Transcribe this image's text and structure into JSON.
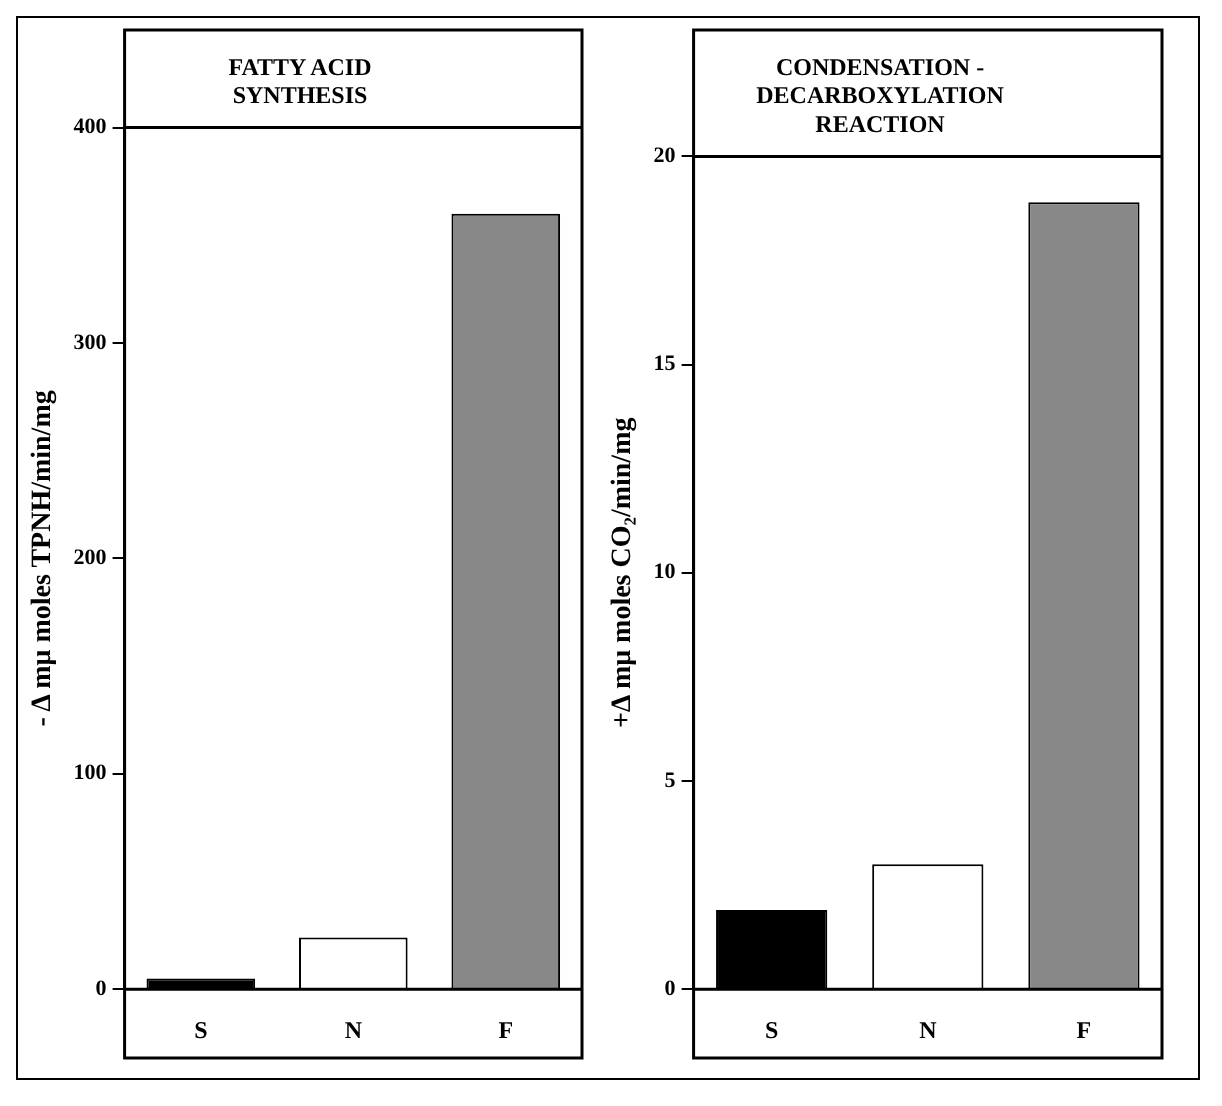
{
  "chart_data": [
    {
      "type": "bar",
      "title": "FATTY ACID SYNTHESIS",
      "ylabel": "- Δ mμ moles TPNH/min/mg",
      "categories": [
        "S",
        "N",
        "F"
      ],
      "values": [
        5,
        24,
        360
      ],
      "colors": [
        "#000000",
        "#ffffff",
        "#888888"
      ],
      "ylim": [
        0,
        400
      ],
      "yticks": [
        0,
        100,
        200,
        300,
        400
      ],
      "grid": false
    },
    {
      "type": "bar",
      "title": "CONDENSATION - DECARBOXYLATION REACTION",
      "ylabel": "+Δ mμ moles CO₂/min/mg",
      "categories": [
        "S",
        "N",
        "F"
      ],
      "values": [
        1.9,
        3.0,
        18.9
      ],
      "colors": [
        "#000000",
        "#ffffff",
        "#888888"
      ],
      "ylim": [
        0,
        20
      ],
      "yticks": [
        0,
        5,
        10,
        15,
        20
      ],
      "grid": false
    }
  ]
}
